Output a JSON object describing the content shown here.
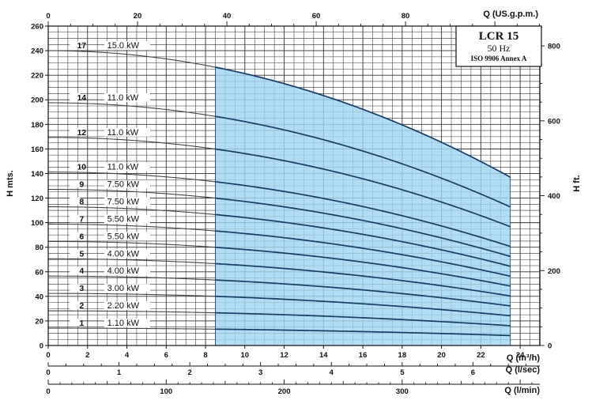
{
  "chart_data": {
    "type": "line",
    "title_box": {
      "model": "LCR 15",
      "frequency": "50 Hz",
      "standard": "ISO 9906 Annex A"
    },
    "y_left": {
      "label": "H mts.",
      "range": [
        0,
        260
      ],
      "ticks": [
        0,
        20,
        40,
        60,
        80,
        100,
        120,
        140,
        160,
        180,
        200,
        220,
        240,
        260
      ]
    },
    "y_right": {
      "label": "H ft.",
      "ticks": [
        "0",
        "200",
        "400",
        "600",
        "800"
      ]
    },
    "x_top": {
      "label": "Q (US.g.p.m.)",
      "ticks": [
        "0",
        "20",
        "40",
        "60",
        "80"
      ]
    },
    "x_main": {
      "label": "Q (m³/h)",
      "range": [
        0,
        25
      ],
      "ticks": [
        0,
        2,
        4,
        6,
        8,
        10,
        12,
        14,
        16,
        18,
        20,
        22,
        24
      ]
    },
    "x_ls": {
      "label": "Q (l/sec)",
      "ticks": [
        "0",
        "1",
        "2",
        "3",
        "4",
        "5",
        "6"
      ]
    },
    "x_lmin": {
      "label": "Q (l/min)",
      "ticks": [
        "0",
        "100",
        "200",
        "300"
      ]
    },
    "operating_range": {
      "q_min": 8.5,
      "q_max": 23.5,
      "fill_color": "#9fd4f2",
      "curve_color": "#1a3d66"
    },
    "series": [
      {
        "stages": "17",
        "power": "15.0 kW",
        "h0": 240,
        "h_end": 137
      },
      {
        "stages": "14",
        "power": "11.0 kW",
        "h0": 197.6,
        "h_end": 112.8
      },
      {
        "stages": "12",
        "power": "11.0 kW",
        "h0": 169.4,
        "h_end": 96.7
      },
      {
        "stages": "10",
        "power": "11.0 kW",
        "h0": 141.2,
        "h_end": 80.6
      },
      {
        "stages": "9",
        "power": "7.50 kW",
        "h0": 127.1,
        "h_end": 72.5
      },
      {
        "stages": "8",
        "power": "7.50 kW",
        "h0": 112.9,
        "h_end": 64.5
      },
      {
        "stages": "7",
        "power": "5.50 kW",
        "h0": 98.8,
        "h_end": 56.4
      },
      {
        "stages": "6",
        "power": "5.50 kW",
        "h0": 84.7,
        "h_end": 48.4
      },
      {
        "stages": "5",
        "power": "4.00 kW",
        "h0": 70.6,
        "h_end": 40.3
      },
      {
        "stages": "4",
        "power": "4.00 kW",
        "h0": 56.5,
        "h_end": 32.2
      },
      {
        "stages": "3",
        "power": "3.00 kW",
        "h0": 42.4,
        "h_end": 24.2
      },
      {
        "stages": "2",
        "power": "2.20 kW",
        "h0": 28.2,
        "h_end": 16.1
      },
      {
        "stages": "1",
        "power": "1.10 kW",
        "h0": 14.1,
        "h_end": 8.1
      }
    ]
  }
}
